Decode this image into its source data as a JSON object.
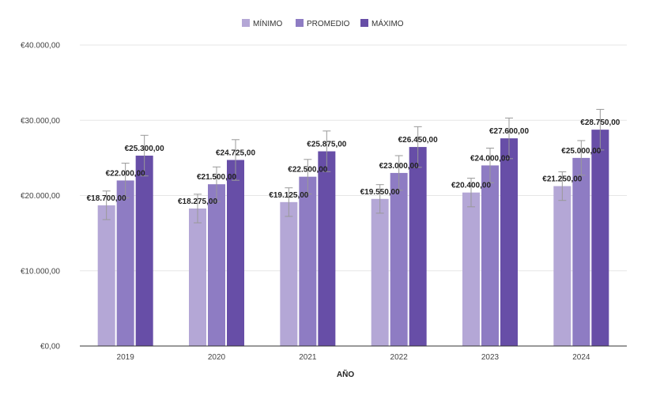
{
  "chart_data": {
    "type": "bar",
    "title": "",
    "xlabel": "AÑO",
    "ylabel": "",
    "categories": [
      "2019",
      "2020",
      "2021",
      "2022",
      "2023",
      "2024"
    ],
    "series": [
      {
        "name": "MÍNIMO",
        "color": "#b4a7d6",
        "values": [
          18700,
          18275,
          19125,
          19550,
          20400,
          21250
        ],
        "labels": [
          "€18.700,00",
          "€18.275,00",
          "€19.125,00",
          "€19.550,00",
          "€20.400,00",
          "€21.250,00"
        ],
        "error": 1900
      },
      {
        "name": "PROMEDIO",
        "color": "#8e7cc3",
        "values": [
          22000,
          21500,
          22500,
          23000,
          24000,
          25000
        ],
        "labels": [
          "€22.000,00",
          "€21.500,00",
          "€22.500,00",
          "€23.000,00",
          "€24.000,00",
          "€25.000,00"
        ],
        "error": 2300
      },
      {
        "name": "MÁXIMO",
        "color": "#674ea7",
        "values": [
          25300,
          24725,
          25875,
          26450,
          27600,
          28750
        ],
        "labels": [
          "€25.300,00",
          "€24.725,00",
          "€25.875,00",
          "€26.450,00",
          "€27.600,00",
          "€28.750,00"
        ],
        "error": 2700
      }
    ],
    "ylim": [
      0,
      40000
    ],
    "yticks": [
      {
        "value": 0,
        "label": "€0,00"
      },
      {
        "value": 10000,
        "label": "€10.000,00"
      },
      {
        "value": 20000,
        "label": "€20.000,00"
      },
      {
        "value": 30000,
        "label": "€30.000,00"
      },
      {
        "value": 40000,
        "label": "€40.000,00"
      }
    ],
    "grid": true,
    "legend_position": "top-center",
    "colors": {
      "grid": "#e6e6e6",
      "axis": "#333333",
      "error_bar": "#999999"
    }
  }
}
